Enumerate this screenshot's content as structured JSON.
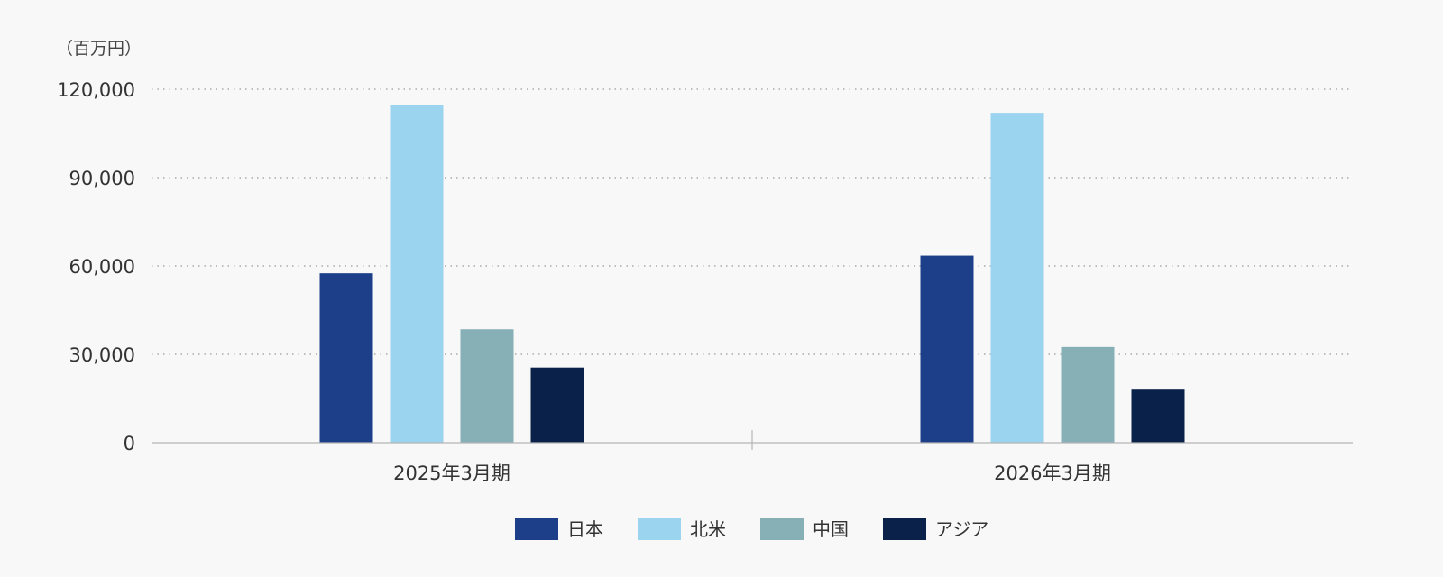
{
  "chart_data": {
    "type": "bar",
    "unit_label": "（百万円）",
    "categories": [
      "2025年3月期",
      "2026年3月期"
    ],
    "series": [
      {
        "name": "日本",
        "color": "#1d3f8a",
        "values": [
          57500,
          63500
        ]
      },
      {
        "name": "北米",
        "color": "#9bd4ef",
        "values": [
          114500,
          112000
        ]
      },
      {
        "name": "中国",
        "color": "#86afb6",
        "values": [
          38500,
          32500
        ]
      },
      {
        "name": "アジア",
        "color": "#0a2249",
        "values": [
          25500,
          18000
        ]
      }
    ],
    "ylim": [
      0,
      120000
    ],
    "yticks": [
      0,
      30000,
      60000,
      90000,
      120000
    ],
    "ytick_labels": [
      "0",
      "30,000",
      "60,000",
      "90,000",
      "120,000"
    ],
    "grid": true,
    "legend": "bottom"
  }
}
